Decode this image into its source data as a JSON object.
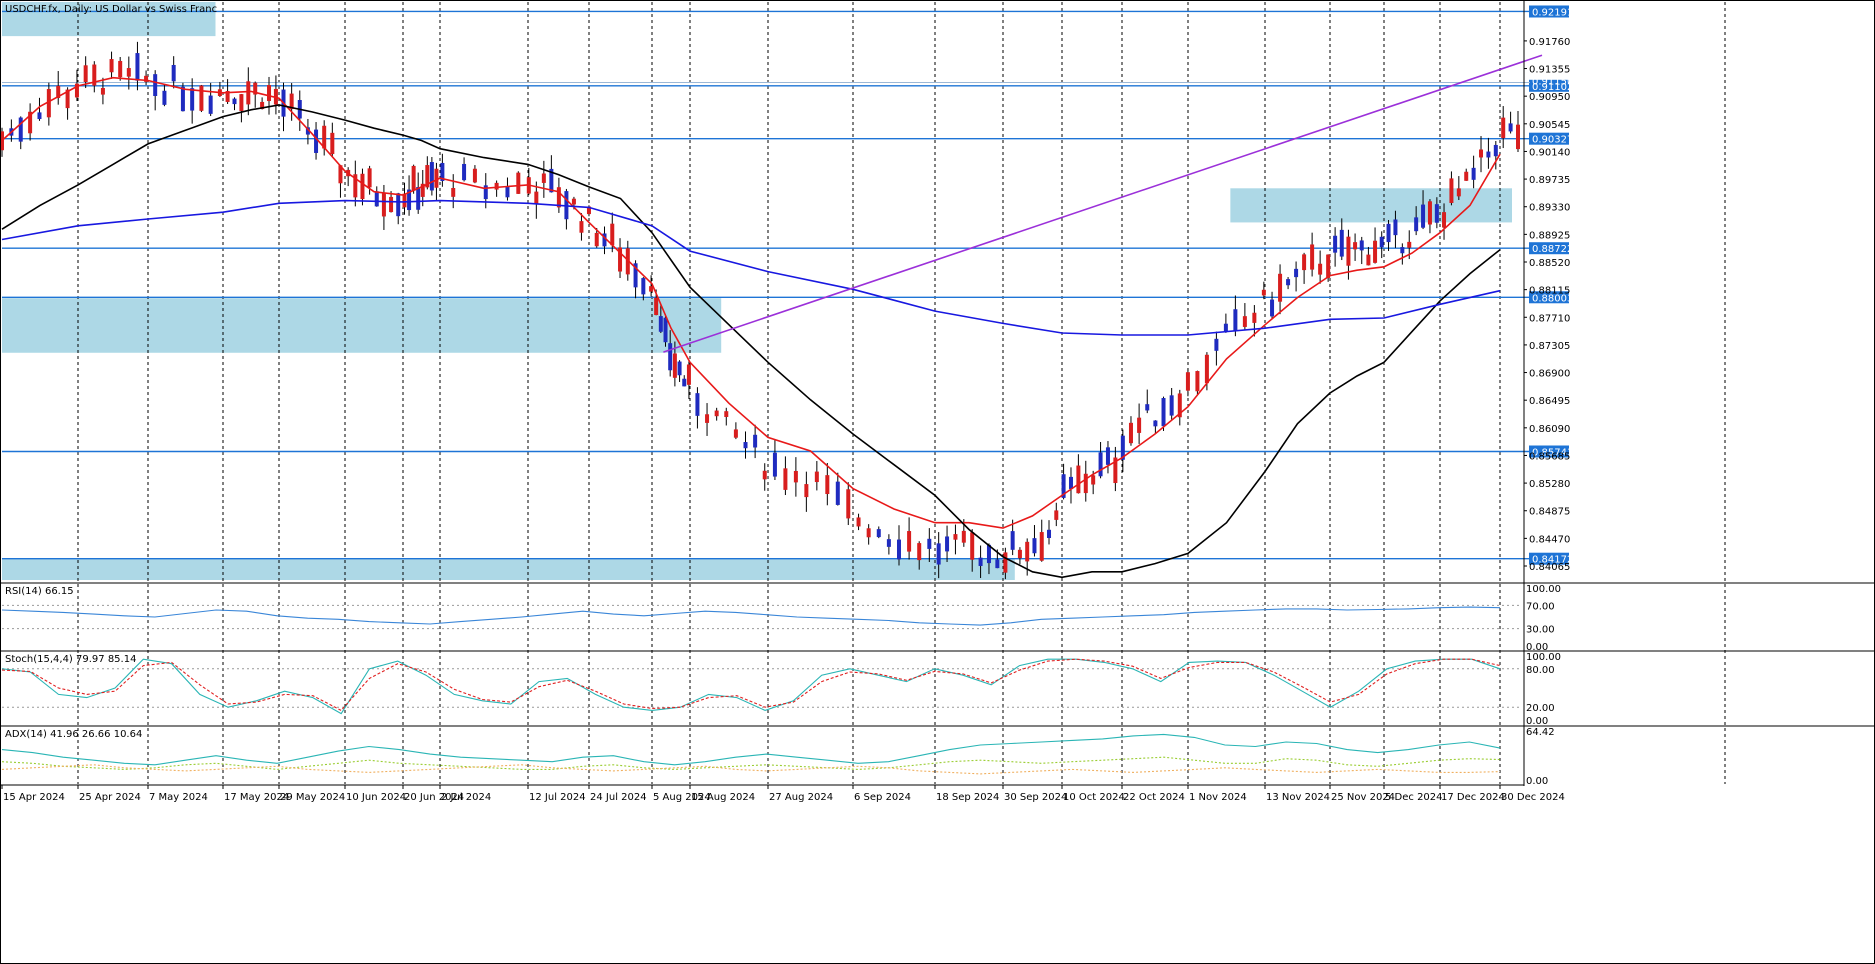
{
  "header": {
    "symbol_text": "USDCHF.fx, Daily:  US Dollar vs Swiss Franc"
  },
  "colors": {
    "bull": "#1f2bbf",
    "bear": "#d81e1e",
    "zone": "#add8e6",
    "hline": "#1e74d6",
    "trendline": "#9b30d9",
    "ma20": "#e81919",
    "ma50": "#000000",
    "ma200": "#1818e0",
    "rsi": "#3a86d8",
    "stoch_main": "#2ab5b5",
    "stoch_signal": "#e02020",
    "adx": "#2ab5b5",
    "di_plus": "#9acd32",
    "di_minus": "#f0b060"
  },
  "chart_data": [
    {
      "type": "candlestick",
      "title": "USDCHF.fx, Daily:  US Dollar vs Swiss Franc",
      "ylim": [
        0.8386,
        0.9233
      ],
      "price_axis_ticks": [
        "0.91760",
        "0.91355",
        "0.90950",
        "0.90545",
        "0.90140",
        "0.89735",
        "0.89330",
        "0.88925",
        "0.88520",
        "0.88115",
        "0.87710",
        "0.87305",
        "0.86900",
        "0.86495",
        "0.86090",
        "0.85685",
        "0.85280",
        "0.84875",
        "0.84470",
        "0.84065"
      ],
      "date_ticks": [
        "15 Apr 2024",
        "25 Apr 2024",
        "7 May 2024",
        "17 May 2024",
        "29 May 2024",
        "10 Jun 2024",
        "20 Jun 2024",
        "2 Jul 2024",
        "12 Jul 2024",
        "24 Jul 2024",
        "5 Aug 2024",
        "15 Aug 2024",
        "27 Aug 2024",
        "6 Sep 2024",
        "18 Sep 2024",
        "30 Sep 2024",
        "10 Oct 2024",
        "22 Oct 2024",
        "1 Nov 2024",
        "13 Nov 2024",
        "25 Nov 2024",
        "5 Dec 2024",
        "17 Dec 2024",
        "30 Dec 2024"
      ],
      "horizontal_levels": [
        "0.92191",
        "0.91102",
        "0.90327",
        "0.88722",
        "0.88003",
        "0.85743",
        "0.84172"
      ],
      "partly_hidden_level": "0.91150",
      "zones": [
        {
          "from_date_idx": 0,
          "to_date_idx": 2.9,
          "low": 0.9183,
          "high": 0.9233
        },
        {
          "from_date_idx": 0,
          "to_date_idx": 11.4,
          "low": 0.8719,
          "high": 0.8799
        },
        {
          "from_date_idx": 0,
          "to_date_idx": 15.2,
          "low": 0.8386,
          "high": 0.8418
        },
        {
          "from_date_idx": 18.55,
          "to_date_idx": 23.2,
          "low": 0.891,
          "high": 0.896
        }
      ],
      "trendline": {
        "start": {
          "date_idx": 10.3,
          "price": 0.872
        },
        "end": {
          "date_idx": 23.7,
          "price": 0.9155
        }
      },
      "moving_averages": [
        {
          "period_color": "ma20",
          "points": [
            [
              0,
              0.903
            ],
            [
              0.5,
              0.908
            ],
            [
              1,
              0.911
            ],
            [
              1.5,
              0.9122
            ],
            [
              2,
              0.9118
            ],
            [
              2.5,
              0.9105
            ],
            [
              3,
              0.91
            ],
            [
              3.5,
              0.9102
            ],
            [
              4,
              0.9092
            ],
            [
              4.5,
              0.904
            ],
            [
              5,
              0.8985
            ],
            [
              5.5,
              0.8955
            ],
            [
              6,
              0.895
            ],
            [
              6.5,
              0.8962
            ],
            [
              7,
              0.8975
            ],
            [
              7.5,
              0.896
            ],
            [
              8,
              0.8965
            ],
            [
              8.5,
              0.8955
            ],
            [
              9,
              0.891
            ],
            [
              9.5,
              0.8865
            ],
            [
              10,
              0.882
            ],
            [
              10.5,
              0.8755
            ],
            [
              11,
              0.8705
            ],
            [
              11.5,
              0.8645
            ],
            [
              12,
              0.8595
            ],
            [
              12.5,
              0.8575
            ],
            [
              13,
              0.852
            ],
            [
              13.5,
              0.849
            ],
            [
              14,
              0.847
            ],
            [
              14.5,
              0.847
            ],
            [
              15,
              0.8462
            ],
            [
              15.5,
              0.848
            ],
            [
              16,
              0.851
            ],
            [
              16.5,
              0.854
            ],
            [
              17,
              0.8565
            ],
            [
              17.5,
              0.86
            ],
            [
              18,
              0.864
            ],
            [
              18.5,
              0.871
            ],
            [
              19,
              0.876
            ],
            [
              19.5,
              0.88
            ],
            [
              20,
              0.8832
            ],
            [
              20.5,
              0.884
            ],
            [
              21,
              0.8845
            ],
            [
              21.5,
              0.8865
            ],
            [
              22,
              0.8895
            ],
            [
              22.5,
              0.8935
            ],
            [
              23,
              0.901
            ]
          ]
        },
        {
          "period_color": "ma50",
          "points": [
            [
              0,
              0.89
            ],
            [
              0.5,
              0.8935
            ],
            [
              1,
              0.8965
            ],
            [
              1.5,
              0.8995
            ],
            [
              2,
              0.9025
            ],
            [
              2.5,
              0.9045
            ],
            [
              3,
              0.9065
            ],
            [
              3.5,
              0.9075
            ],
            [
              4,
              0.9082
            ],
            [
              4.5,
              0.9072
            ],
            [
              5,
              0.906
            ],
            [
              5.5,
              0.9048
            ],
            [
              6,
              0.9038
            ],
            [
              6.5,
              0.903
            ],
            [
              7,
              0.9018
            ],
            [
              7.5,
              0.9005
            ],
            [
              8,
              0.8995
            ],
            [
              8.5,
              0.898
            ],
            [
              9,
              0.8962
            ],
            [
              9.5,
              0.8945
            ],
            [
              10,
              0.8895
            ],
            [
              10.5,
              0.8855
            ],
            [
              11,
              0.8815
            ],
            [
              11.5,
              0.876
            ],
            [
              12,
              0.8705
            ],
            [
              12.5,
              0.865
            ],
            [
              13,
              0.86
            ],
            [
              13.5,
              0.8555
            ],
            [
              14,
              0.851
            ],
            [
              14.5,
              0.846
            ],
            [
              15,
              0.842
            ],
            [
              15.5,
              0.8398
            ],
            [
              16,
              0.839
            ],
            [
              16.5,
              0.8398
            ],
            [
              17,
              0.8398
            ],
            [
              17.5,
              0.841
            ],
            [
              18,
              0.8425
            ],
            [
              18.5,
              0.847
            ],
            [
              19,
              0.8545
            ],
            [
              19.5,
              0.8615
            ],
            [
              20,
              0.866
            ],
            [
              20.5,
              0.8685
            ],
            [
              21,
              0.8705
            ],
            [
              21.5,
              0.875
            ],
            [
              22,
              0.8795
            ],
            [
              22.5,
              0.8835
            ],
            [
              23,
              0.887
            ]
          ]
        },
        {
          "period_color": "ma200",
          "points": [
            [
              0,
              0.8885
            ],
            [
              1,
              0.8905
            ],
            [
              2,
              0.8915
            ],
            [
              3,
              0.8925
            ],
            [
              4,
              0.8938
            ],
            [
              5,
              0.8942
            ],
            [
              6,
              0.894
            ],
            [
              7,
              0.8942
            ],
            [
              8,
              0.8938
            ],
            [
              9,
              0.8932
            ],
            [
              10,
              0.8905
            ],
            [
              11,
              0.8868
            ],
            [
              12,
              0.8838
            ],
            [
              13,
              0.8812
            ],
            [
              14,
              0.878
            ],
            [
              15,
              0.8762
            ],
            [
              16,
              0.8748
            ],
            [
              17,
              0.8745
            ],
            [
              18,
              0.8745
            ],
            [
              19,
              0.8755
            ],
            [
              20,
              0.8768
            ],
            [
              21,
              0.877
            ],
            [
              22,
              0.879
            ],
            [
              23,
              0.881
            ]
          ]
        }
      ]
    },
    {
      "type": "line",
      "title": "RSI(14) 66.15",
      "ylim": [
        0,
        100
      ],
      "levels": [
        "70.00",
        "30.00"
      ],
      "axis_ticks": [
        "100.00",
        "70.00",
        "30.00",
        "0.00"
      ],
      "series": [
        {
          "values": [
            62,
            60,
            58,
            55,
            52,
            50,
            56,
            62,
            60,
            52,
            48,
            46,
            42,
            40,
            38,
            42,
            46,
            50,
            55,
            60,
            55,
            52,
            56,
            60,
            58,
            54,
            50,
            48,
            46,
            44,
            40,
            38,
            36,
            40,
            46,
            48,
            50,
            52,
            54,
            58,
            60,
            62,
            64,
            64,
            62,
            63,
            64,
            66,
            67,
            66
          ]
        }
      ]
    },
    {
      "type": "line",
      "title": "Stoch(15,4,4) 79.97 85.14",
      "ylim": [
        0,
        100
      ],
      "levels": [
        "80.00",
        "20.00"
      ],
      "axis_ticks": [
        "100.00",
        "80.00",
        "20.00",
        "0.00"
      ],
      "series": [
        {
          "values": [
            80,
            75,
            40,
            35,
            50,
            95,
            88,
            40,
            20,
            30,
            45,
            35,
            10,
            80,
            92,
            70,
            40,
            30,
            25,
            60,
            65,
            40,
            20,
            15,
            20,
            40,
            35,
            15,
            30,
            70,
            80,
            70,
            60,
            80,
            70,
            55,
            85,
            95,
            95,
            90,
            80,
            60,
            90,
            92,
            90,
            70,
            45,
            20,
            45,
            80,
            92,
            95,
            95,
            80
          ]
        },
        {
          "values": [
            78,
            76,
            50,
            40,
            45,
            85,
            90,
            55,
            25,
            28,
            40,
            38,
            15,
            65,
            88,
            75,
            48,
            32,
            28,
            52,
            62,
            45,
            25,
            18,
            20,
            35,
            38,
            20,
            28,
            60,
            75,
            72,
            62,
            76,
            72,
            58,
            78,
            92,
            95,
            92,
            84,
            65,
            82,
            90,
            90,
            75,
            52,
            28,
            40,
            72,
            88,
            95,
            95,
            85
          ]
        }
      ]
    },
    {
      "type": "line",
      "title": "ADX(14) 41.96 26.66 10.64",
      "ylim": [
        0,
        64.42
      ],
      "axis_ticks": [
        "64.42",
        "0.00"
      ],
      "series": [
        {
          "values": [
            40,
            36,
            30,
            26,
            22,
            20,
            26,
            32,
            26,
            22,
            30,
            38,
            44,
            40,
            34,
            30,
            28,
            26,
            24,
            30,
            32,
            24,
            20,
            24,
            30,
            34,
            30,
            26,
            22,
            24,
            32,
            40,
            46,
            48,
            50,
            52,
            54,
            58,
            60,
            56,
            46,
            44,
            50,
            48,
            40,
            36,
            40,
            46,
            50,
            42
          ]
        },
        {
          "values": [
            24,
            22,
            18,
            16,
            14,
            16,
            20,
            22,
            18,
            14,
            18,
            22,
            26,
            22,
            20,
            18,
            16,
            14,
            14,
            18,
            20,
            16,
            14,
            16,
            18,
            20,
            18,
            16,
            14,
            16,
            20,
            24,
            26,
            24,
            22,
            24,
            26,
            28,
            30,
            26,
            22,
            22,
            28,
            26,
            20,
            18,
            22,
            26,
            28,
            27
          ]
        },
        {
          "values": [
            14,
            16,
            18,
            20,
            16,
            14,
            12,
            14,
            16,
            18,
            14,
            12,
            10,
            12,
            14,
            16,
            18,
            20,
            16,
            14,
            12,
            14,
            16,
            18,
            14,
            12,
            14,
            16,
            18,
            16,
            12,
            10,
            8,
            10,
            12,
            14,
            12,
            10,
            12,
            14,
            16,
            14,
            12,
            10,
            12,
            14,
            12,
            10,
            10,
            11
          ]
        }
      ]
    }
  ]
}
